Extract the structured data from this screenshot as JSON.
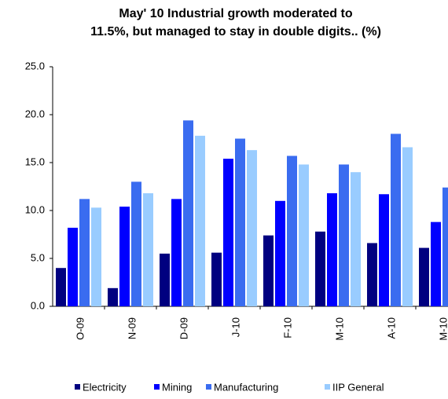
{
  "chart_data": {
    "type": "bar",
    "title": [
      "May' 10 Industrial growth moderated to",
      "11.5%, but managed to stay in double digits.. (%)"
    ],
    "categories": [
      "O-09",
      "N-09",
      "D-09",
      "J-10",
      "F-10",
      "M-10",
      "A-10",
      "M-10"
    ],
    "series": [
      {
        "name": "Electricity",
        "color": "#000080",
        "values": [
          4.0,
          1.9,
          5.5,
          5.6,
          7.4,
          7.8,
          6.6,
          6.1
        ]
      },
      {
        "name": "Mining",
        "color": "#0000ff",
        "values": [
          8.2,
          10.4,
          11.2,
          15.4,
          11.0,
          11.8,
          11.7,
          8.8
        ]
      },
      {
        "name": "Manufacturing",
        "color": "#3a6cf0",
        "values": [
          11.2,
          13.0,
          19.4,
          17.5,
          15.7,
          14.8,
          18.0,
          12.4
        ]
      },
      {
        "name": "IIP General",
        "color": "#99ccff",
        "values": [
          10.3,
          11.8,
          17.8,
          16.3,
          14.8,
          14.0,
          16.6,
          null
        ]
      }
    ],
    "ylim": [
      0,
      25
    ],
    "yticks": [
      {
        "value": 0,
        "label": "0.0"
      },
      {
        "value": 5,
        "label": "5.0"
      },
      {
        "value": 10,
        "label": "10.0"
      },
      {
        "value": 15,
        "label": "15.0"
      },
      {
        "value": 20,
        "label": "20.0"
      },
      {
        "value": 25,
        "label": "25.0"
      }
    ],
    "legend": "bottom"
  }
}
